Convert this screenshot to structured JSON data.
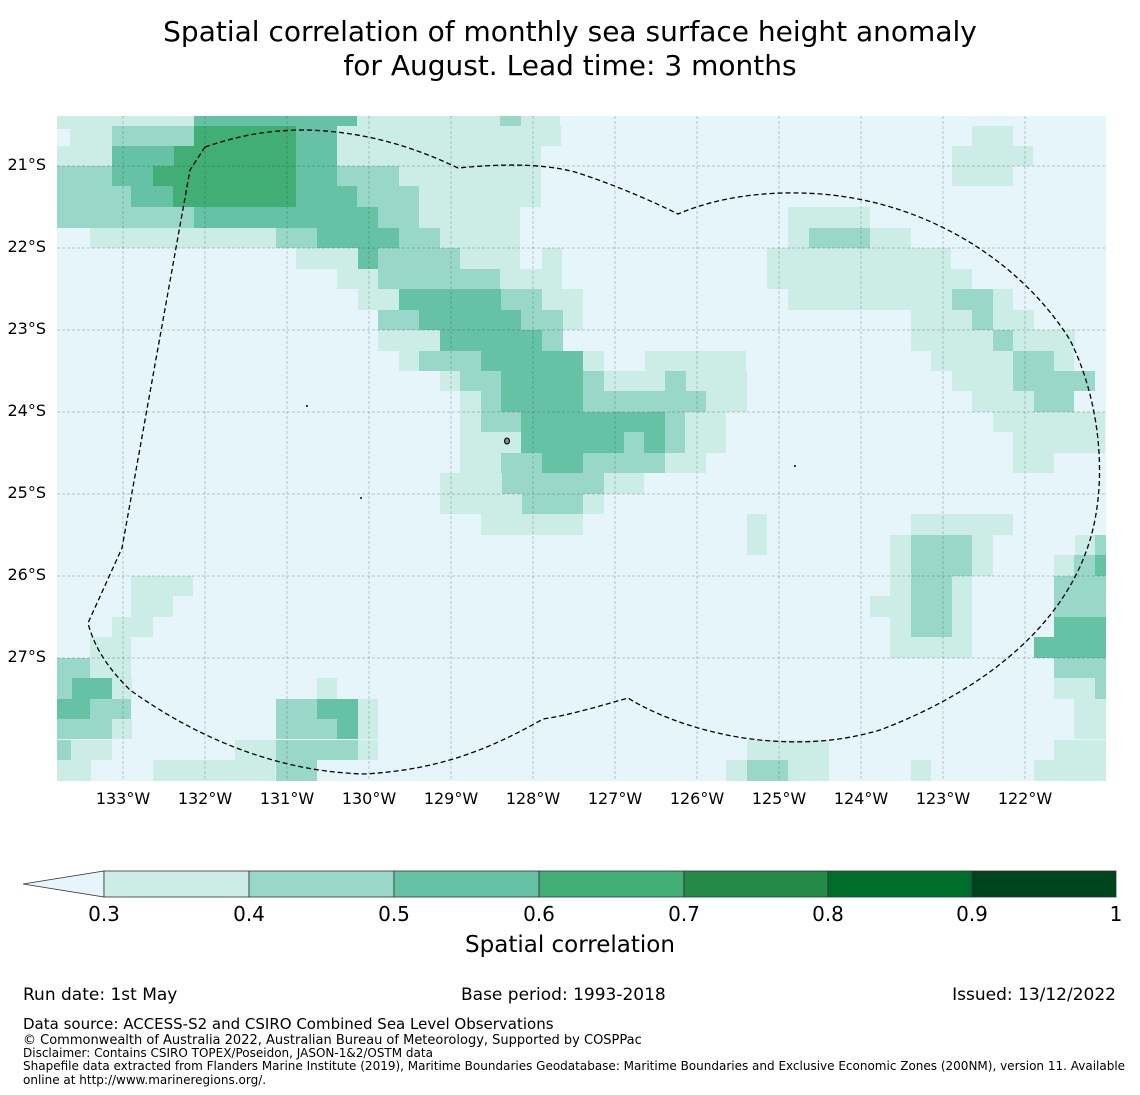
{
  "title": {
    "line1": "Spatial correlation of monthly sea surface height anomaly",
    "line2": "for August. Lead time: 3 months"
  },
  "map": {
    "lat_labels": [
      "21°S",
      "22°S",
      "23°S",
      "24°S",
      "25°S",
      "26°S",
      "27°S"
    ],
    "lon_labels": [
      "133°W",
      "132°W",
      "131°W",
      "130°W",
      "129°W",
      "128°W",
      "127°W",
      "126°W",
      "125°W",
      "124°W",
      "123°W",
      "122°W"
    ],
    "lon_range": [
      -133.8,
      -121.0
    ],
    "lat_range": [
      -28.5,
      -20.4
    ],
    "grid": true,
    "boundary": "Exclusive Economic Zone (200NM), dashed outline",
    "background_color": "#e5f5f9",
    "legend_colors": [
      "#ccece6",
      "#99d8c9",
      "#66c2a4",
      "#41ae76",
      "#238b45",
      "#006d2c",
      "#00441b"
    ]
  },
  "colorbar": {
    "ticks": [
      "0.3",
      "0.4",
      "0.5",
      "0.6",
      "0.7",
      "0.8",
      "0.9",
      "1"
    ],
    "colors": [
      "#ccece6",
      "#99d8c9",
      "#66c2a4",
      "#41ae76",
      "#238b45",
      "#006d2c",
      "#00441b"
    ],
    "extend_color": "#e5f5f9",
    "label": "Spatial correlation"
  },
  "footer": {
    "run_date": "Run date: 1st May",
    "base_period": "Base period: 1993-2018",
    "issued": "Issued: 13/12/2022",
    "data_source": "Data source: ACCESS-S2 and CSIRO Combined Sea Level Observations",
    "copyright": "© Commonwealth of Australia 2022, Australian Bureau of Meteorology, Supported by COSPPac",
    "disclaimer": "Disclaimer: Contains CSIRO TOPEX/Poseidon, JASON-1&2/OSTM data",
    "shapefile": "Shapefile data extracted from Flanders Marine Institute (2019), Maritime Boundaries Geodatabase: Maritime Boundaries and Exclusive Economic Zones (200NM), version 11. Available online at http://www.marineregions.org/."
  }
}
